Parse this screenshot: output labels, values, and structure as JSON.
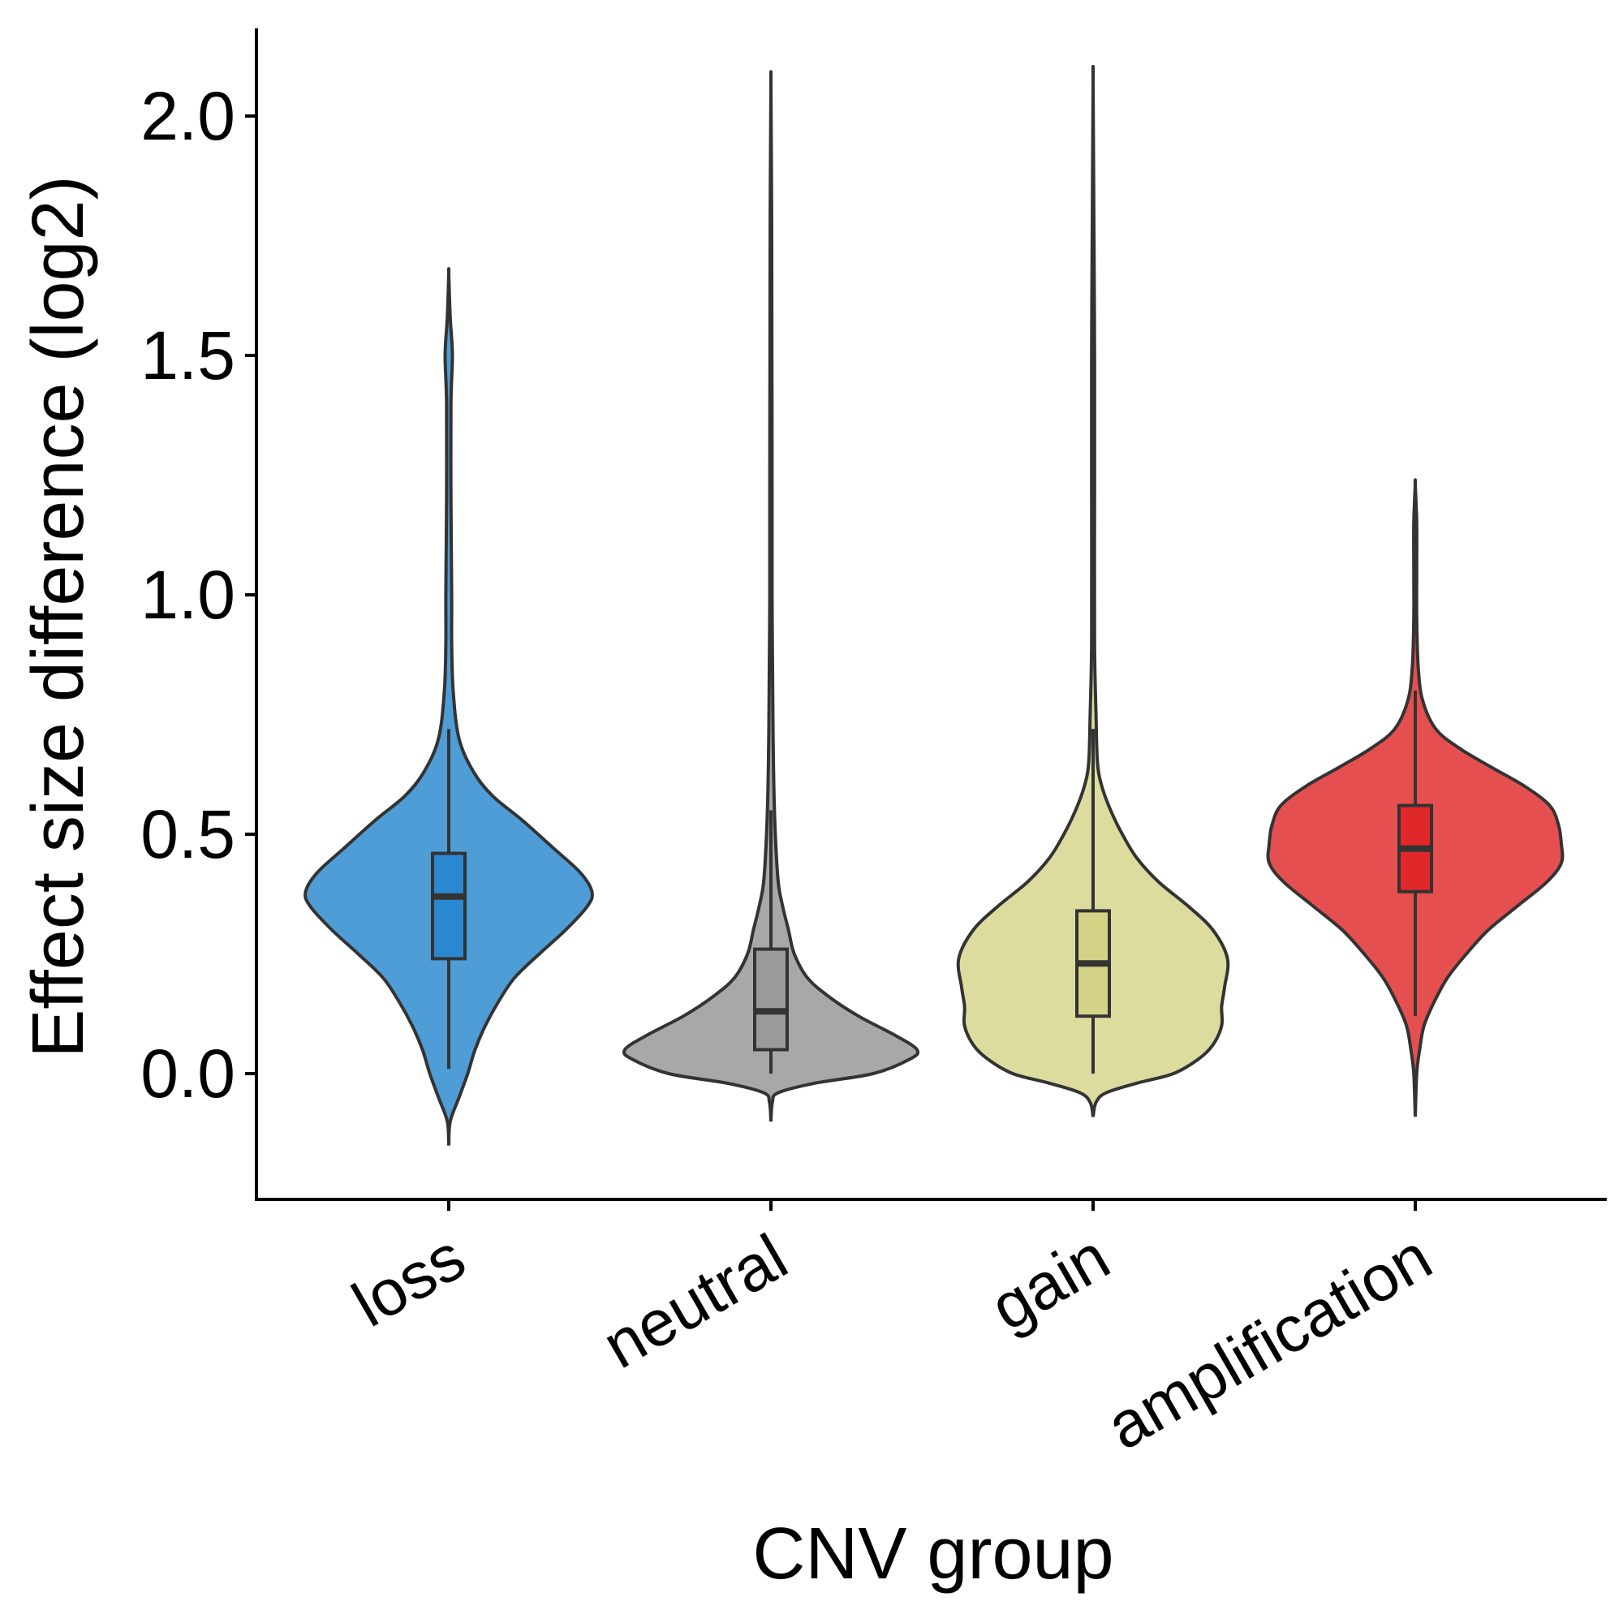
{
  "chart_data": {
    "type": "violin",
    "title": "",
    "xlabel": "CNV group",
    "ylabel": "Effect size difference (log2)",
    "ylim": [
      -0.26,
      2.18
    ],
    "yticks": [
      0.0,
      0.5,
      1.0,
      1.5,
      2.0
    ],
    "ytick_labels": [
      "0.0",
      "0.5",
      "1.0",
      "1.5",
      "2.0"
    ],
    "grid": false,
    "legend": "none",
    "categories": [
      "loss",
      "neutral",
      "gain",
      "amplification"
    ],
    "groups": [
      {
        "name": "loss",
        "color": "#4E9DD6",
        "box_color": "#2A88D0",
        "min": -0.15,
        "max": 1.67,
        "whisker_low": 0.01,
        "q1": 0.24,
        "median": 0.37,
        "q3": 0.46,
        "whisker_high": 0.72,
        "density": [
          [
            -0.15,
            0.0
          ],
          [
            -0.1,
            0.01
          ],
          [
            -0.05,
            0.07
          ],
          [
            0.0,
            0.13
          ],
          [
            0.05,
            0.18
          ],
          [
            0.1,
            0.25
          ],
          [
            0.15,
            0.34
          ],
          [
            0.2,
            0.45
          ],
          [
            0.25,
            0.62
          ],
          [
            0.3,
            0.8
          ],
          [
            0.35,
            0.95
          ],
          [
            0.38,
            0.98
          ],
          [
            0.42,
            0.9
          ],
          [
            0.47,
            0.72
          ],
          [
            0.53,
            0.5
          ],
          [
            0.58,
            0.3
          ],
          [
            0.63,
            0.17
          ],
          [
            0.7,
            0.07
          ],
          [
            0.8,
            0.03
          ],
          [
            0.9,
            0.02
          ],
          [
            1.0,
            0.02
          ],
          [
            1.2,
            0.015
          ],
          [
            1.4,
            0.015
          ],
          [
            1.5,
            0.025
          ],
          [
            1.58,
            0.01
          ],
          [
            1.67,
            0.0
          ]
        ]
      },
      {
        "name": "neutral",
        "color": "#A8A8A8",
        "box_color": "#9A9A9A",
        "min": -0.1,
        "max": 2.06,
        "whisker_low": 0.0,
        "q1": 0.05,
        "median": 0.13,
        "q3": 0.26,
        "whisker_high": 0.55,
        "density": [
          [
            -0.1,
            0.0
          ],
          [
            -0.06,
            0.01
          ],
          [
            -0.04,
            0.05
          ],
          [
            -0.02,
            0.3
          ],
          [
            0.0,
            0.7
          ],
          [
            0.03,
            0.95
          ],
          [
            0.05,
            1.0
          ],
          [
            0.08,
            0.85
          ],
          [
            0.12,
            0.6
          ],
          [
            0.16,
            0.4
          ],
          [
            0.2,
            0.25
          ],
          [
            0.25,
            0.16
          ],
          [
            0.3,
            0.12
          ],
          [
            0.35,
            0.08
          ],
          [
            0.4,
            0.05
          ],
          [
            0.5,
            0.03
          ],
          [
            0.6,
            0.02
          ],
          [
            0.7,
            0.015
          ],
          [
            0.8,
            0.012
          ],
          [
            1.0,
            0.008
          ],
          [
            1.2,
            0.008
          ],
          [
            1.4,
            0.007
          ],
          [
            1.6,
            0.006
          ],
          [
            1.8,
            0.005
          ],
          [
            2.06,
            0.0
          ]
        ]
      },
      {
        "name": "gain",
        "color": "#DDDC9F",
        "box_color": "#D4D385",
        "min": -0.09,
        "max": 2.07,
        "whisker_low": 0.0,
        "q1": 0.12,
        "median": 0.23,
        "q3": 0.34,
        "whisker_high": 0.72,
        "density": [
          [
            -0.09,
            0.0
          ],
          [
            -0.06,
            0.02
          ],
          [
            -0.04,
            0.09
          ],
          [
            -0.02,
            0.3
          ],
          [
            0.0,
            0.55
          ],
          [
            0.03,
            0.72
          ],
          [
            0.06,
            0.82
          ],
          [
            0.1,
            0.88
          ],
          [
            0.14,
            0.88
          ],
          [
            0.18,
            0.9
          ],
          [
            0.24,
            0.92
          ],
          [
            0.3,
            0.82
          ],
          [
            0.35,
            0.65
          ],
          [
            0.4,
            0.45
          ],
          [
            0.45,
            0.3
          ],
          [
            0.5,
            0.2
          ],
          [
            0.55,
            0.12
          ],
          [
            0.6,
            0.06
          ],
          [
            0.65,
            0.03
          ],
          [
            0.75,
            0.02
          ],
          [
            0.9,
            0.01
          ],
          [
            1.2,
            0.01
          ],
          [
            1.5,
            0.01
          ],
          [
            1.8,
            0.005
          ],
          [
            2.07,
            0.0
          ]
        ]
      },
      {
        "name": "amplification",
        "color": "#E64F4F",
        "box_color": "#E0282B",
        "min": -0.09,
        "max": 1.23,
        "whisker_low": 0.12,
        "q1": 0.38,
        "median": 0.47,
        "q3": 0.56,
        "whisker_high": 0.8,
        "density": [
          [
            -0.09,
            0.0
          ],
          [
            0.0,
            0.01
          ],
          [
            0.05,
            0.03
          ],
          [
            0.1,
            0.06
          ],
          [
            0.15,
            0.13
          ],
          [
            0.2,
            0.22
          ],
          [
            0.25,
            0.35
          ],
          [
            0.3,
            0.5
          ],
          [
            0.35,
            0.7
          ],
          [
            0.4,
            0.9
          ],
          [
            0.44,
            1.0
          ],
          [
            0.48,
            1.0
          ],
          [
            0.52,
            0.98
          ],
          [
            0.56,
            0.92
          ],
          [
            0.6,
            0.75
          ],
          [
            0.64,
            0.52
          ],
          [
            0.68,
            0.3
          ],
          [
            0.72,
            0.14
          ],
          [
            0.78,
            0.05
          ],
          [
            0.85,
            0.02
          ],
          [
            0.95,
            0.01
          ],
          [
            1.05,
            0.01
          ],
          [
            1.15,
            0.01
          ],
          [
            1.23,
            0.0
          ]
        ]
      }
    ]
  }
}
